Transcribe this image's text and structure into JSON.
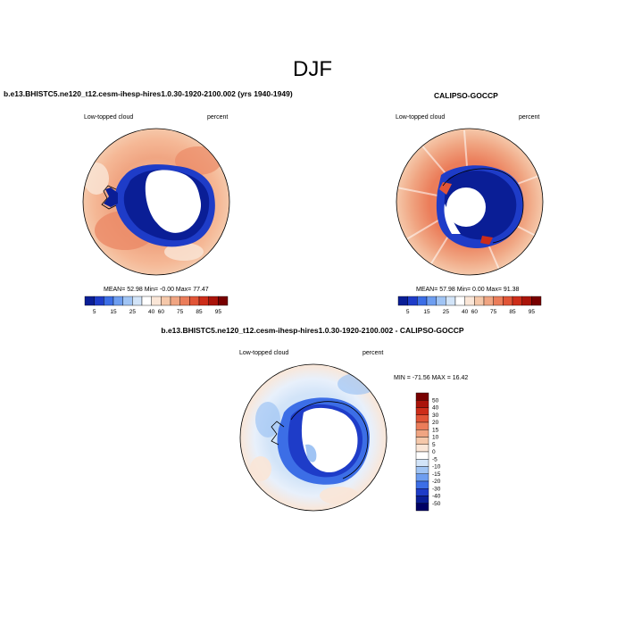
{
  "season": "DJF",
  "panels": [
    {
      "id": "model",
      "title": "b.e13.BHISTC5.ne120_t12.cesm-ihesp-hires1.0.30-1920-2100.002 (yrs 1940-1949)",
      "left_label": "Low-topped cloud",
      "right_label": "percent",
      "stats": "MEAN=  52.98  Min=  -0.00  Max=  77.47",
      "stats_values": {
        "mean": 52.98,
        "min": -0.0,
        "max": 77.47
      }
    },
    {
      "id": "obs",
      "title": "CALIPSO-GOCCP",
      "left_label": "Low-topped cloud",
      "right_label": "percent",
      "stats": "MEAN=  57.98  Min=   0.00  Max=  91.38",
      "stats_values": {
        "mean": 57.98,
        "min": 0.0,
        "max": 91.38
      }
    },
    {
      "id": "diff",
      "title": "b.e13.BHISTC5.ne120_t12.cesm-ihesp-hires1.0.30-1920-2100.002 - CALIPSO-GOCCP",
      "left_label": "Low-topped cloud",
      "right_label": "percent",
      "stats": "MIN = -71.56 MAX =  16.42",
      "stats_values": {
        "min": -71.56,
        "max": 16.42
      }
    }
  ],
  "colorbar_seq": {
    "labels": [
      "5",
      "15",
      "25",
      "40",
      "60",
      "75",
      "85",
      "95"
    ],
    "colors": [
      "#0a1e96",
      "#1e3cc8",
      "#3c6ee6",
      "#6e9ef0",
      "#a0c4f4",
      "#d2e4f8",
      "#ffffff",
      "#fae6d7",
      "#f5c8aa",
      "#f0a582",
      "#eb7d5a",
      "#e15537",
      "#cd2d19",
      "#aa140a",
      "#780000"
    ]
  },
  "colorbar_diff": {
    "labels": [
      "50",
      "40",
      "30",
      "20",
      "15",
      "10",
      "5",
      "0",
      "-5",
      "-10",
      "-15",
      "-20",
      "-30",
      "-40",
      "-50"
    ],
    "colors": [
      "#780000",
      "#aa140a",
      "#cd2d19",
      "#e15537",
      "#eb7d5a",
      "#f0a582",
      "#f5c8aa",
      "#fae6d7",
      "#ffffff",
      "#d2e4f8",
      "#a0c4f4",
      "#6e9ef0",
      "#3c6ee6",
      "#1e3cc8",
      "#0a1e96",
      "#000064"
    ]
  }
}
